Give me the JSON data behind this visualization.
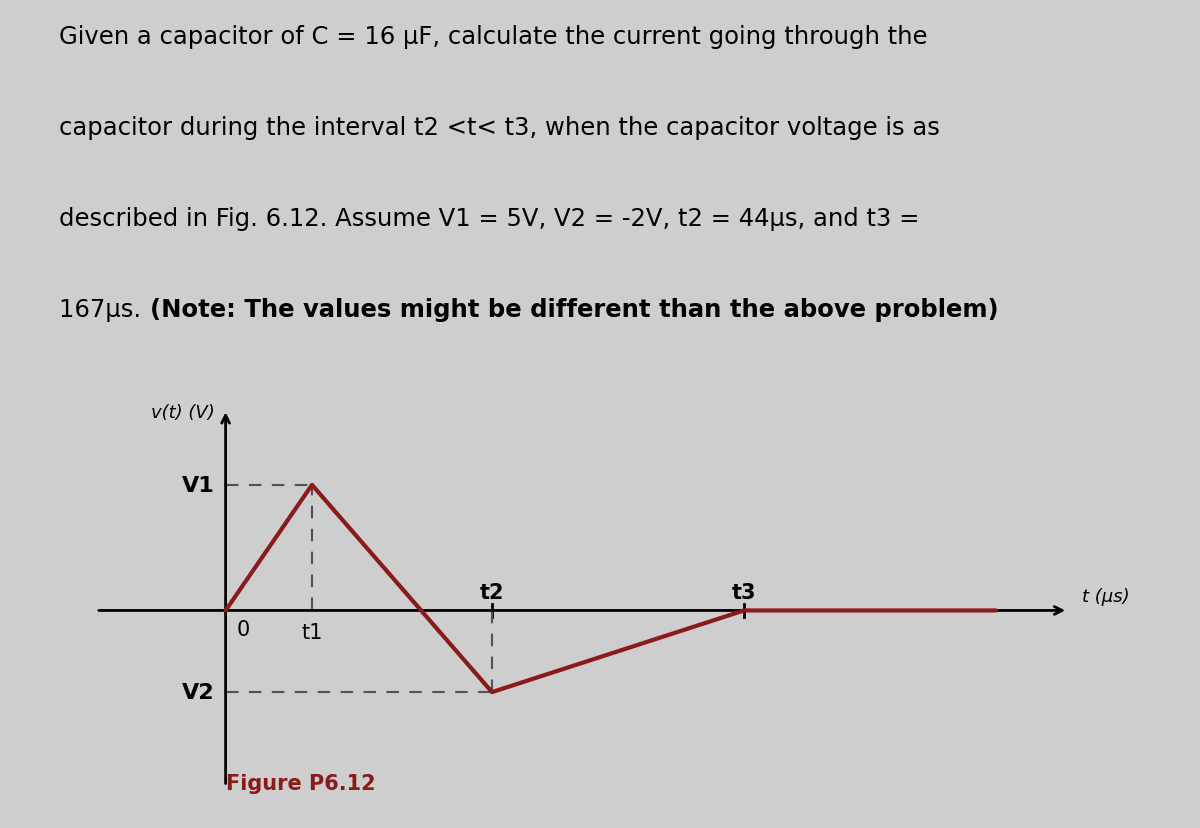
{
  "line_color": "#8B1A1A",
  "axis_color": "#000000",
  "dashed_color": "#505060",
  "background_color": "#CECECE",
  "figure_label_color": "#8B1A1A",
  "text_color": "#000000",
  "t1": 3.0,
  "t2": 5.5,
  "t3": 9.0,
  "t_end": 13.5,
  "V1": 1.0,
  "V2": -0.65,
  "xlim": [
    -0.5,
    15.0
  ],
  "ylim": [
    -1.6,
    1.7
  ],
  "y_axis_x": 1.8,
  "fontsize_text": 17.5,
  "fontsize_label": 15,
  "fontsize_vt": 13,
  "lw_wave": 3.0,
  "lw_axis": 2.0,
  "lw_dash": 1.5
}
